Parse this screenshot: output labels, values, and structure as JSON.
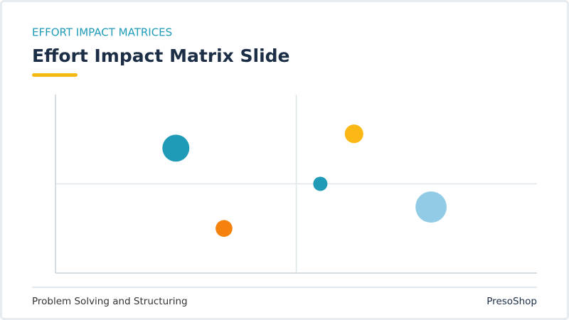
{
  "header": {
    "kicker": "EFFORT IMPACT MATRICES",
    "title": "Effort Impact Matrix Slide"
  },
  "chart_data": {
    "type": "bubble",
    "x": [
      2.5,
      3.5,
      6.2,
      5.5,
      7.8
    ],
    "values": [
      7.0,
      2.5,
      7.8,
      5.0,
      3.7
    ],
    "sizes": [
      3.6,
      1.4,
      1.7,
      1.0,
      4.8
    ],
    "colors": [
      "#1f9bb8",
      "#f5820d",
      "#fbb714",
      "#1f9bb8",
      "#92cbe5"
    ],
    "xlim": [
      0,
      10
    ],
    "ylim": [
      0,
      10
    ],
    "quadrant_lines": {
      "x": 5,
      "y": 5
    }
  },
  "footer": {
    "left": "Problem Solving and Structuring",
    "right": "PresoShop"
  }
}
